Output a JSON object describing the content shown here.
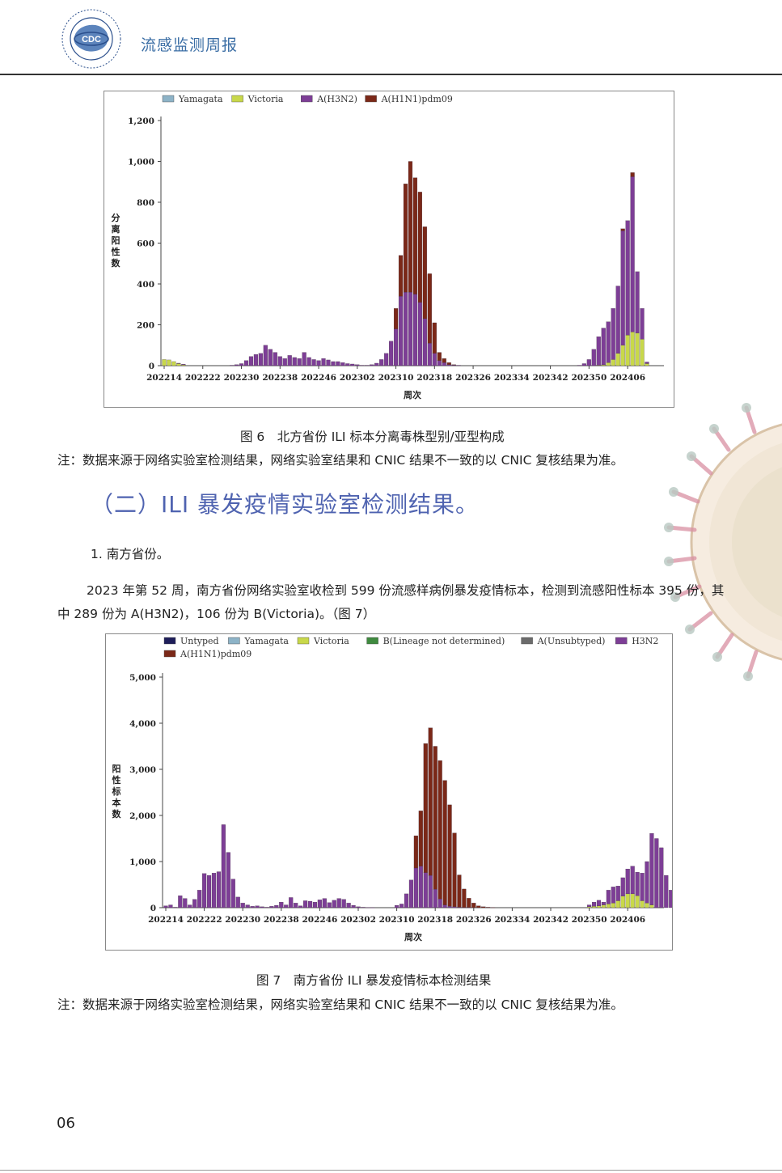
{
  "header": {
    "title": "流感监测周报",
    "logo_text": "CDC"
  },
  "figure6": {
    "caption": "图 6　北方省份 ILI 标本分离毒株型别/亚型构成",
    "note": "注：数据来源于网络实验室检测结果，网络实验室结果和 CNIC 结果不一致的以 CNIC 复核结果为准。"
  },
  "section": {
    "heading": "（二）ILI 暴发疫情实验室检测结果。",
    "subheading": "1. 南方省份。"
  },
  "paragraph": "2023 年第 52 周，南方省份网络实验室收检到 599 份流感样病例暴发疫情标本，检测到流感阳性标本 395 份，其中 289 份为 A(H3N2)，106 份为 B(Victoria)。（图 7）",
  "figure7": {
    "caption": "图 7　南方省份 ILI 暴发疫情标本检测结果",
    "note": "注：数据来源于网络实验室检测结果，网络实验室结果和 CNIC 结果不一致的以 CNIC 复核结果为准。"
  },
  "page_number": "06",
  "chart_data": [
    {
      "type": "bar",
      "stacked": true,
      "title": "",
      "xlabel": "周次",
      "ylabel": "分离阳性数",
      "ylim": [
        0,
        1200
      ],
      "yticks": [
        "0",
        "200",
        "400",
        "600",
        "800",
        "1,000",
        "1,200"
      ],
      "xticks": [
        "202214",
        "202222",
        "202230",
        "202238",
        "202246",
        "202302",
        "202310",
        "202318",
        "202326",
        "202334",
        "202342",
        "202350",
        "202406"
      ],
      "legend_position": "top",
      "x_start_index": 0,
      "series": [
        {
          "name": "Yamagata",
          "color": "#8db3c7",
          "values": []
        },
        {
          "name": "Victoria",
          "color": "#c8d84a",
          "values": [
            30,
            28,
            20,
            10,
            4,
            0,
            0,
            0,
            0,
            0,
            0,
            0,
            0,
            0,
            0,
            0,
            0,
            0,
            0,
            0,
            0,
            0,
            0,
            0,
            0,
            0,
            0,
            0,
            0,
            0,
            0,
            0,
            0,
            0,
            0,
            0,
            0,
            0,
            0,
            0,
            0,
            0,
            0,
            0,
            0,
            0,
            0,
            0,
            0,
            0,
            0,
            0,
            0,
            0,
            0,
            0,
            0,
            0,
            0,
            0,
            0,
            0,
            0,
            0,
            0,
            0,
            0,
            0,
            0,
            0,
            0,
            0,
            0,
            0,
            0,
            0,
            0,
            0,
            0,
            0,
            0,
            0,
            0,
            0,
            0,
            0,
            0,
            0,
            0,
            0,
            2,
            4,
            15,
            30,
            60,
            100,
            150,
            165,
            160,
            130,
            10
          ]
        },
        {
          "name": "A(H3N2)",
          "color": "#7d3e96",
          "values": [
            0,
            0,
            0,
            2,
            3,
            0,
            0,
            0,
            0,
            0,
            0,
            0,
            0,
            0,
            2,
            5,
            10,
            25,
            45,
            55,
            60,
            100,
            80,
            65,
            45,
            35,
            50,
            40,
            35,
            65,
            40,
            30,
            25,
            35,
            28,
            20,
            20,
            15,
            10,
            8,
            5,
            2,
            2,
            5,
            12,
            30,
            60,
            120,
            180,
            340,
            360,
            360,
            350,
            310,
            230,
            110,
            60,
            25,
            15,
            5,
            3,
            2,
            0,
            0,
            0,
            0,
            0,
            0,
            0,
            0,
            0,
            0,
            0,
            0,
            0,
            0,
            0,
            0,
            0,
            0,
            0,
            0,
            0,
            0,
            0,
            0,
            2,
            10,
            30,
            80,
            140,
            180,
            200,
            250,
            330,
            560,
            560,
            760,
            300,
            150,
            8
          ]
        },
        {
          "name": "A(H1N1)pdm09",
          "color": "#7b2818",
          "values": [
            0,
            0,
            0,
            0,
            0,
            0,
            0,
            0,
            0,
            0,
            0,
            0,
            0,
            0,
            0,
            0,
            0,
            0,
            0,
            0,
            0,
            0,
            0,
            0,
            0,
            0,
            0,
            0,
            0,
            0,
            0,
            0,
            0,
            0,
            0,
            0,
            0,
            0,
            0,
            0,
            0,
            0,
            0,
            0,
            0,
            0,
            0,
            0,
            100,
            200,
            530,
            640,
            570,
            540,
            450,
            340,
            150,
            40,
            20,
            10,
            2,
            0,
            0,
            0,
            0,
            0,
            0,
            0,
            0,
            0,
            0,
            0,
            0,
            0,
            0,
            0,
            0,
            0,
            0,
            0,
            0,
            0,
            0,
            0,
            0,
            0,
            0,
            0,
            0,
            0,
            0,
            0,
            0,
            0,
            0,
            10,
            0,
            20,
            0,
            0,
            0
          ]
        }
      ]
    },
    {
      "type": "bar",
      "stacked": true,
      "title": "",
      "xlabel": "周次",
      "ylabel": "阳性标本数",
      "ylim": [
        0,
        5000
      ],
      "yticks": [
        "0",
        "1,000",
        "2,000",
        "3,000",
        "4,000",
        "5,000"
      ],
      "xticks": [
        "202214",
        "202222",
        "202230",
        "202238",
        "202246",
        "202302",
        "202310",
        "202318",
        "202326",
        "202334",
        "202342",
        "202350",
        "202406"
      ],
      "legend_position": "top",
      "series": [
        {
          "name": "Untyped",
          "color": "#1e1e5a",
          "values": []
        },
        {
          "name": "Yamagata",
          "color": "#8db3c7",
          "values": []
        },
        {
          "name": "Victoria",
          "color": "#c8d84a",
          "values": [
            0,
            0,
            0,
            0,
            0,
            0,
            0,
            0,
            0,
            0,
            0,
            0,
            0,
            0,
            0,
            0,
            0,
            0,
            0,
            0,
            0,
            0,
            0,
            0,
            0,
            0,
            0,
            0,
            0,
            0,
            0,
            0,
            0,
            0,
            0,
            0,
            0,
            0,
            0,
            0,
            0,
            0,
            0,
            0,
            0,
            0,
            0,
            0,
            0,
            0,
            0,
            0,
            0,
            0,
            0,
            0,
            0,
            0,
            0,
            0,
            0,
            0,
            0,
            0,
            0,
            0,
            0,
            0,
            0,
            0,
            0,
            0,
            0,
            0,
            0,
            0,
            0,
            0,
            0,
            0,
            0,
            0,
            0,
            0,
            0,
            0,
            0,
            0,
            20,
            30,
            40,
            60,
            80,
            100,
            150,
            250,
            300,
            300,
            260,
            150,
            100,
            60
          ]
        },
        {
          "name": "B(Lineage not determined)",
          "color": "#3f8a3f",
          "values": []
        },
        {
          "name": "A(Unsubtyped)",
          "color": "#6b6b6b",
          "values": []
        },
        {
          "name": "H3N2",
          "color": "#7d3e96",
          "values": [
            40,
            60,
            10,
            260,
            200,
            60,
            180,
            380,
            740,
            700,
            750,
            780,
            1800,
            1200,
            620,
            230,
            100,
            60,
            30,
            40,
            20,
            10,
            30,
            50,
            120,
            60,
            220,
            100,
            40,
            150,
            140,
            120,
            170,
            200,
            110,
            160,
            200,
            180,
            100,
            50,
            20,
            10,
            5,
            2,
            0,
            0,
            0,
            0,
            50,
            80,
            300,
            600,
            860,
            900,
            760,
            700,
            400,
            190,
            60,
            30,
            20,
            10,
            5,
            5,
            0,
            0,
            0,
            0,
            0,
            0,
            0,
            0,
            0,
            0,
            0,
            0,
            0,
            0,
            0,
            0,
            0,
            0,
            0,
            0,
            0,
            0,
            0,
            0,
            40,
            90,
            120,
            60,
            300,
            350,
            320,
            400,
            540,
            600,
            510,
            600,
            900,
            1550,
            1500,
            1300,
            700,
            380,
            280
          ]
        },
        {
          "name": "A(H1N1)pdm09",
          "color": "#7b2818",
          "values": [
            0,
            0,
            0,
            0,
            0,
            0,
            0,
            0,
            0,
            0,
            0,
            0,
            0,
            0,
            0,
            0,
            0,
            0,
            0,
            0,
            0,
            0,
            0,
            0,
            0,
            0,
            0,
            0,
            0,
            0,
            0,
            0,
            0,
            0,
            0,
            0,
            0,
            0,
            0,
            0,
            0,
            0,
            0,
            0,
            0,
            0,
            0,
            0,
            0,
            0,
            0,
            0,
            700,
            1200,
            2800,
            3200,
            3100,
            3000,
            2700,
            2200,
            1600,
            700,
            400,
            200,
            100,
            40,
            20,
            10,
            5,
            0,
            0,
            0,
            0,
            0,
            0,
            0,
            0,
            0,
            0,
            0,
            0,
            0,
            0,
            0,
            0,
            0,
            0,
            0,
            0,
            0,
            0,
            0,
            0,
            0,
            0,
            0,
            0,
            0,
            0,
            0,
            0,
            0,
            0,
            0,
            0,
            0,
            0,
            0,
            0
          ]
        }
      ]
    }
  ]
}
